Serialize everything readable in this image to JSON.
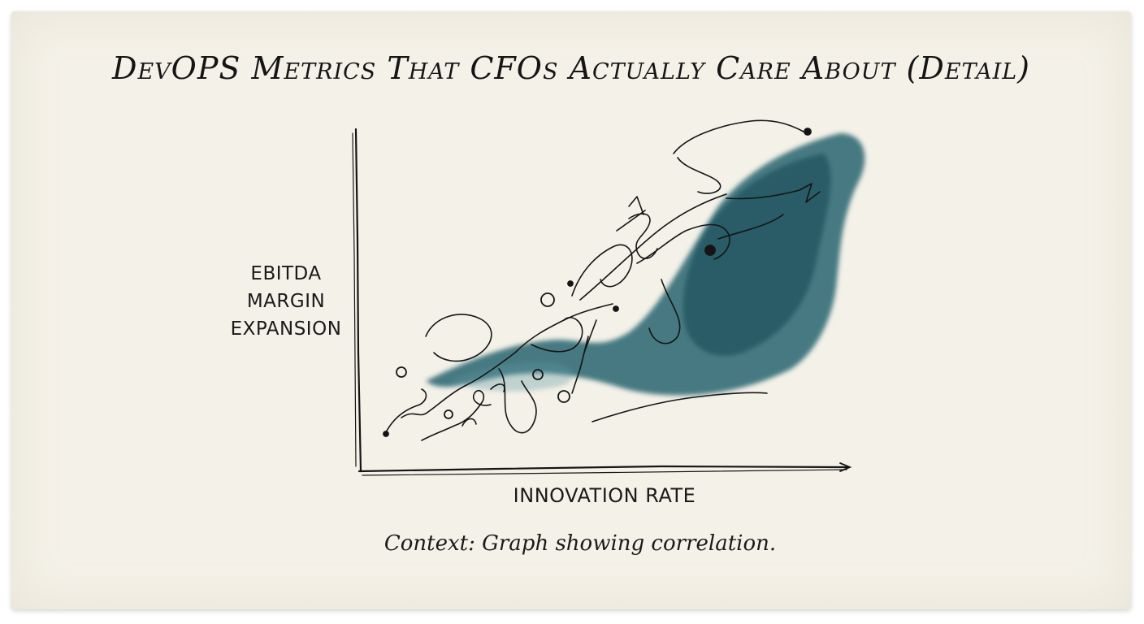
{
  "title": "DevOPS Metrics That CFOs Actually Care About (Detail)",
  "caption": "Context: Graph showing correlation.",
  "colors": {
    "paper": "#f4f1e8",
    "ink": "#151515",
    "wash": "#1f5f6b"
  },
  "chart_data": {
    "type": "scatter",
    "title": "DevOPS Metrics That CFOs Actually Care About (Detail)",
    "xlabel": "INNOVATION RATE",
    "ylabel_lines": [
      "EBITDA",
      "MARGIN",
      "EXPANSION"
    ],
    "grid": false,
    "trend": "positive correlation",
    "x_ticks": [],
    "y_ticks": []
  }
}
